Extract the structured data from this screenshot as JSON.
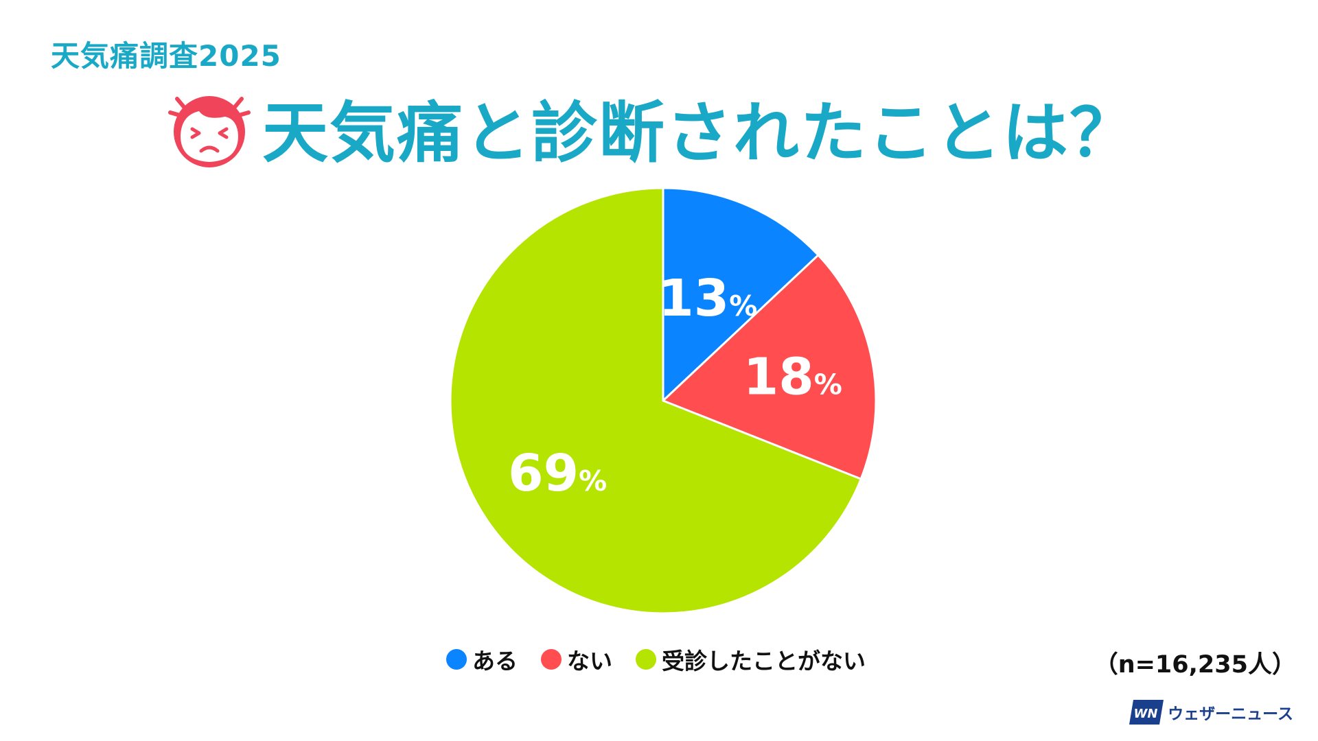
{
  "header": {
    "survey_label": "天気痛調査2025",
    "title": "天気痛と診断されたことは？"
  },
  "chart_data": {
    "type": "pie",
    "categories": [
      "ある",
      "ない",
      "受診したことがない"
    ],
    "values": [
      13,
      18,
      69
    ],
    "labels": [
      "13%",
      "18%",
      "69%"
    ],
    "colors": [
      "#0a84ff",
      "#ff4d50",
      "#b5e400"
    ],
    "start_angle": "12 o'clock",
    "direction": "clockwise",
    "legend_position": "bottom"
  },
  "legend": {
    "items": [
      {
        "label": "ある",
        "color": "#0a84ff"
      },
      {
        "label": "ない",
        "color": "#ff4d50"
      },
      {
        "label": "受診したことがない",
        "color": "#b5e400"
      }
    ]
  },
  "footer": {
    "sample_size": "（n=16,235人）",
    "brand_logo_text": "WN",
    "brand_name": "ウェザーニュース"
  },
  "colors": {
    "title": "#19a8c6",
    "icon": "#f0445a"
  },
  "icons": {
    "title_icon": "pained-face-icon",
    "brand_icon": "weathernews-logo-icon"
  }
}
